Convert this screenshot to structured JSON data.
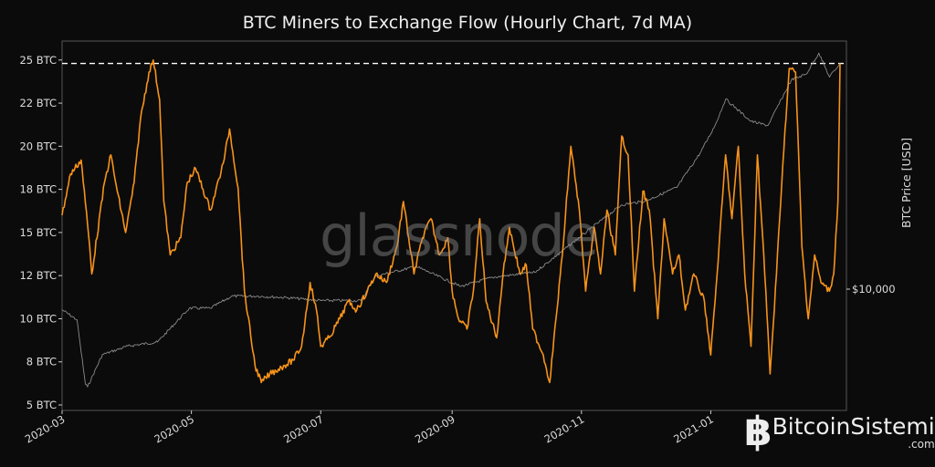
{
  "chart_data": {
    "type": "line",
    "title": "BTC Miners to Exchange Flow (Hourly Chart, 7d MA)",
    "xlabel": "",
    "ylabel": "",
    "ylabel_right": "BTC Price [USD]",
    "x_ticks": [
      "2020-03",
      "2020-05",
      "2020-07",
      "2020-09",
      "2020-11",
      "2021-01"
    ],
    "y_ticks": [
      "25 BTC",
      "22 BTC",
      "20 BTC",
      "18 BTC",
      "15 BTC",
      "12 BTC",
      "10 BTC",
      "8 BTC",
      "5 BTC"
    ],
    "y_tick_values": [
      25,
      22.5,
      20,
      17.5,
      15,
      12.5,
      10,
      7.5,
      5
    ],
    "y_right_ticks": [
      "$10,000"
    ],
    "ylim": [
      5,
      26.1
    ],
    "xlim": [
      "2020-03-01",
      "2021-03-06"
    ],
    "y_right_scale": "log",
    "grid": false,
    "reference_line": {
      "value": 24.8,
      "style": "dashed",
      "color": "#ffffff"
    },
    "watermark": "glassnode",
    "series": [
      {
        "axis": "left",
        "color": "#f7931a",
        "points": [
          [
            "2020-03-01",
            16
          ],
          [
            "2020-03-05",
            18.4
          ],
          [
            "2020-03-10",
            19.2
          ],
          [
            "2020-03-14",
            14.2
          ],
          [
            "2020-03-15",
            12.6
          ],
          [
            "2020-03-21",
            17.9
          ],
          [
            "2020-03-24",
            19.5
          ],
          [
            "2020-03-27",
            17.4
          ],
          [
            "2020-03-31",
            15
          ],
          [
            "2020-04-04",
            17.9
          ],
          [
            "2020-04-07",
            21.6
          ],
          [
            "2020-04-11",
            24.3
          ],
          [
            "2020-04-13",
            25
          ],
          [
            "2020-04-16",
            22.7
          ],
          [
            "2020-04-18",
            16.8
          ],
          [
            "2020-04-21",
            13.7
          ],
          [
            "2020-04-26",
            14.7
          ],
          [
            "2020-04-29",
            17.9
          ],
          [
            "2020-05-03",
            18.7
          ],
          [
            "2020-05-10",
            16.3
          ],
          [
            "2020-05-16",
            19
          ],
          [
            "2020-05-19",
            21
          ],
          [
            "2020-05-23",
            17.6
          ],
          [
            "2020-05-26",
            11.6
          ],
          [
            "2020-05-31",
            7.3
          ],
          [
            "2020-06-03",
            6.3
          ],
          [
            "2020-06-07",
            6.8
          ],
          [
            "2020-06-14",
            7.3
          ],
          [
            "2020-06-18",
            7.6
          ],
          [
            "2020-06-22",
            8.4
          ],
          [
            "2020-06-26",
            12.1
          ],
          [
            "2020-06-29",
            10.5
          ],
          [
            "2020-07-01",
            8.4
          ],
          [
            "2020-07-05",
            8.9
          ],
          [
            "2020-07-10",
            10
          ],
          [
            "2020-07-14",
            11
          ],
          [
            "2020-07-18",
            10.5
          ],
          [
            "2020-07-23",
            11.6
          ],
          [
            "2020-07-27",
            12.6
          ],
          [
            "2020-08-01",
            12.1
          ],
          [
            "2020-08-06",
            14.2
          ],
          [
            "2020-08-09",
            16.8
          ],
          [
            "2020-08-14",
            12.6
          ],
          [
            "2020-08-18",
            14.7
          ],
          [
            "2020-08-22",
            15.8
          ],
          [
            "2020-08-26",
            13.7
          ],
          [
            "2020-08-30",
            14.7
          ],
          [
            "2020-09-01",
            11.6
          ],
          [
            "2020-09-04",
            10
          ],
          [
            "2020-09-08",
            9.4
          ],
          [
            "2020-09-11",
            11.6
          ],
          [
            "2020-09-14",
            15.8
          ],
          [
            "2020-09-17",
            11
          ],
          [
            "2020-09-22",
            8.9
          ],
          [
            "2020-09-25",
            12.6
          ],
          [
            "2020-09-28",
            15.3
          ],
          [
            "2020-10-03",
            12.6
          ],
          [
            "2020-10-06",
            13.1
          ],
          [
            "2020-10-09",
            9.4
          ],
          [
            "2020-10-14",
            7.9
          ],
          [
            "2020-10-17",
            6.3
          ],
          [
            "2020-10-20",
            10
          ],
          [
            "2020-10-23",
            13.7
          ],
          [
            "2020-10-27",
            20
          ],
          [
            "2020-10-31",
            16.3
          ],
          [
            "2020-11-03",
            11.6
          ],
          [
            "2020-11-07",
            15.3
          ],
          [
            "2020-11-10",
            12.6
          ],
          [
            "2020-11-13",
            16.3
          ],
          [
            "2020-11-17",
            13.7
          ],
          [
            "2020-11-20",
            20.6
          ],
          [
            "2020-11-23",
            19.5
          ],
          [
            "2020-11-26",
            11.6
          ],
          [
            "2020-11-30",
            17.4
          ],
          [
            "2020-12-03",
            16.3
          ],
          [
            "2020-12-07",
            10
          ],
          [
            "2020-12-10",
            15.8
          ],
          [
            "2020-12-14",
            12.6
          ],
          [
            "2020-12-17",
            13.7
          ],
          [
            "2020-12-20",
            10.5
          ],
          [
            "2020-12-24",
            12.6
          ],
          [
            "2020-12-29",
            11
          ],
          [
            "2021-01-01",
            7.9
          ],
          [
            "2021-01-04",
            12.6
          ],
          [
            "2021-01-08",
            19.5
          ],
          [
            "2021-01-11",
            15.8
          ],
          [
            "2021-01-14",
            20
          ],
          [
            "2021-01-17",
            12.6
          ],
          [
            "2021-01-20",
            8.4
          ],
          [
            "2021-01-23",
            19.5
          ],
          [
            "2021-01-26",
            13.7
          ],
          [
            "2021-01-29",
            6.8
          ],
          [
            "2021-02-01",
            12.6
          ],
          [
            "2021-02-04",
            19
          ],
          [
            "2021-02-07",
            24.5
          ],
          [
            "2021-02-10",
            24.3
          ],
          [
            "2021-02-13",
            14.2
          ],
          [
            "2021-02-16",
            10
          ],
          [
            "2021-02-19",
            13.7
          ],
          [
            "2021-02-22",
            12.1
          ],
          [
            "2021-02-26",
            11.6
          ],
          [
            "2021-02-28",
            12.6
          ],
          [
            "2021-03-02",
            16.8
          ],
          [
            "2021-03-03",
            24.8
          ]
        ]
      },
      {
        "axis": "right",
        "color": "#8a8a8a",
        "points": [
          [
            "2020-03-01",
            8600
          ],
          [
            "2020-03-08",
            8000
          ],
          [
            "2020-03-12",
            5000
          ],
          [
            "2020-03-13",
            4900
          ],
          [
            "2020-03-20",
            6200
          ],
          [
            "2020-04-01",
            6600
          ],
          [
            "2020-04-15",
            6800
          ],
          [
            "2020-04-30",
            8700
          ],
          [
            "2020-05-10",
            8700
          ],
          [
            "2020-05-20",
            9500
          ],
          [
            "2020-06-01",
            9500
          ],
          [
            "2020-06-15",
            9400
          ],
          [
            "2020-07-01",
            9200
          ],
          [
            "2020-07-20",
            9200
          ],
          [
            "2020-07-27",
            11000
          ],
          [
            "2020-08-15",
            11800
          ],
          [
            "2020-09-05",
            10200
          ],
          [
            "2020-09-20",
            10900
          ],
          [
            "2020-10-10",
            11300
          ],
          [
            "2020-10-21",
            12900
          ],
          [
            "2020-11-05",
            15500
          ],
          [
            "2020-11-20",
            18500
          ],
          [
            "2020-12-01",
            19000
          ],
          [
            "2020-12-16",
            21000
          ],
          [
            "2020-12-27",
            27000
          ],
          [
            "2021-01-03",
            33000
          ],
          [
            "2021-01-08",
            40000
          ],
          [
            "2021-01-20",
            34000
          ],
          [
            "2021-01-28",
            33000
          ],
          [
            "2021-02-08",
            46000
          ],
          [
            "2021-02-15",
            48000
          ],
          [
            "2021-02-21",
            56000
          ],
          [
            "2021-02-26",
            47000
          ],
          [
            "2021-03-03",
            52000
          ]
        ]
      }
    ]
  },
  "branding": {
    "name": "BitcoinSistemi",
    "suffix": ".com",
    "glyph": "฿"
  }
}
